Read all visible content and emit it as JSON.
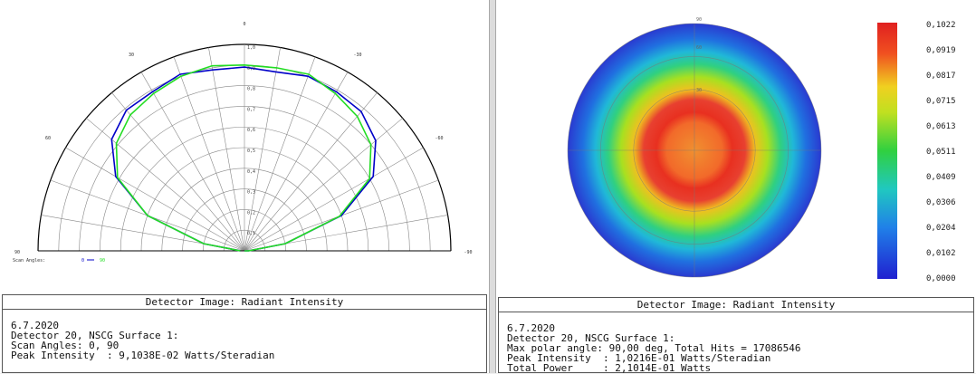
{
  "left": {
    "caption": "Detector Image: Radiant Intensity",
    "info": [
      "6.7.2020",
      "Detector 20, NSCG Surface 1:",
      "Scan Angles: 0, 90",
      "Peak Intensity  : 9,1038E-02 Watts/Steradian"
    ],
    "angle_labels": {
      "top": "0",
      "upper_left": "30",
      "upper_right": "-30",
      "left": "60",
      "right": "-60",
      "far_left": "90",
      "far_right": "-90"
    },
    "radial_labels": [
      "1,0",
      "0,9",
      "0,8",
      "0,7",
      "0,6",
      "0,5",
      "0,4",
      "0,3",
      "0,2",
      "0,1"
    ],
    "legend": {
      "label": "Scan Angles:",
      "series": [
        "0",
        "90"
      ]
    },
    "colors": {
      "series_0": "#0000c8",
      "series_90": "#22dd22"
    }
  },
  "right": {
    "caption": "Detector Image: Radiant Intensity",
    "info": [
      "6.7.2020",
      "Detector 20, NSCG Surface 1:",
      "Max polar angle: 90,00 deg, Total Hits = 17086546",
      "Peak Intensity  : 1,0216E-01 Watts/Steradian",
      "Total Power     : 2,1014E-01 Watts"
    ],
    "colorbar_labels": [
      "0,1022",
      "0,0919",
      "0,0817",
      "0,0715",
      "0,0613",
      "0,0511",
      "0,0409",
      "0,0306",
      "0,0204",
      "0,0102",
      "0,0000"
    ],
    "top_labels": [
      "90",
      "60",
      "30"
    ]
  },
  "chart_data": [
    {
      "type": "line",
      "series": [
        {
          "name": "0",
          "x": [
            -90,
            -80,
            -70,
            -60,
            -50,
            -40,
            -30,
            -20,
            -10,
            0,
            10,
            20,
            30,
            40,
            50,
            60,
            70,
            80,
            90
          ],
          "values": [
            0.02,
            0.2,
            0.5,
            0.72,
            0.84,
            0.89,
            0.89,
            0.91,
            0.89,
            0.89,
            0.88,
            0.9,
            0.89,
            0.88,
            0.83,
            0.72,
            0.5,
            0.2,
            0.02
          ]
        },
        {
          "name": "90",
          "x": [
            -90,
            -80,
            -70,
            -60,
            -50,
            -40,
            -30,
            -20,
            -10,
            0,
            10,
            20,
            30,
            40,
            50,
            60,
            70,
            80,
            90
          ],
          "values": [
            0.02,
            0.2,
            0.5,
            0.71,
            0.81,
            0.86,
            0.88,
            0.9,
            0.91,
            0.9,
            0.9,
            0.91,
            0.88,
            0.85,
            0.8,
            0.7,
            0.49,
            0.2,
            0.02
          ]
        }
      ]
    },
    {
      "type": "heatmap",
      "ylim": [
        0,
        0.1022
      ]
    }
  ]
}
